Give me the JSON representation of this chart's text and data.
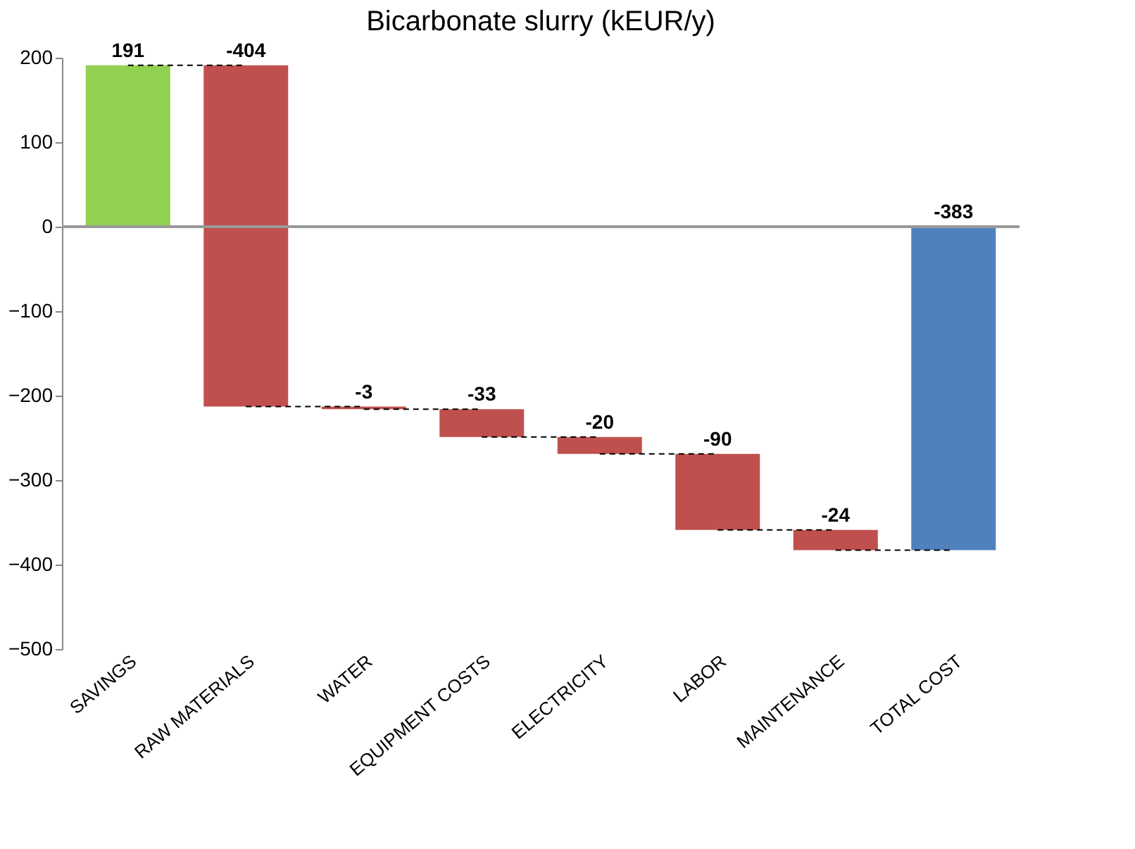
{
  "chart_data": {
    "type": "bar",
    "title": "Bicarbonate slurry (kEUR/y)",
    "categories": [
      "SAVINGS",
      "RAW MATERIALS",
      "WATER",
      "EQUIPMENT COSTS",
      "ELECTRICITY",
      "LABOR",
      "MAINTENANCE",
      "TOTAL COST"
    ],
    "values": [
      191,
      -404,
      -3,
      -33,
      -20,
      -90,
      -24,
      -383
    ],
    "base": [
      0,
      191,
      -213,
      -216,
      -249,
      -269,
      -359,
      0
    ],
    "colors": [
      "#92d050",
      "#c0504d",
      "#c0504d",
      "#c0504d",
      "#c0504d",
      "#c0504d",
      "#c0504d",
      "#4f81bd"
    ],
    "ylim": [
      -500,
      200
    ],
    "yticks": [
      -500,
      -400,
      -300,
      -200,
      -100,
      0,
      100,
      200
    ],
    "ref_lines": [
      {
        "axis": "y",
        "value": 0,
        "color": "#999999"
      }
    ],
    "data_labels": true,
    "grid": false
  }
}
